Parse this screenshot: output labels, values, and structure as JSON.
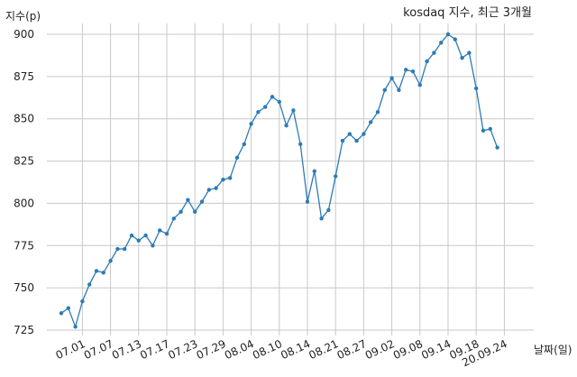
{
  "chart_data": {
    "type": "line",
    "title": "kosdaq 지수, 최근 3개월",
    "xlabel": "날짜(일)",
    "ylabel": "지수(p)",
    "ylim": [
      720,
      905
    ],
    "yticks": [
      725,
      750,
      775,
      800,
      825,
      850,
      875,
      900
    ],
    "xticks": [
      {
        "label": "07.01",
        "x": 3
      },
      {
        "label": "07.07",
        "x": 7
      },
      {
        "label": "07.13",
        "x": 11
      },
      {
        "label": "07.17",
        "x": 15
      },
      {
        "label": "07.23",
        "x": 19
      },
      {
        "label": "07.29",
        "x": 23
      },
      {
        "label": "08.04",
        "x": 27
      },
      {
        "label": "08.10",
        "x": 31
      },
      {
        "label": "08.14",
        "x": 35
      },
      {
        "label": "08.21",
        "x": 39
      },
      {
        "label": "08.27",
        "x": 43
      },
      {
        "label": "09.02",
        "x": 47
      },
      {
        "label": "09.08",
        "x": 51
      },
      {
        "label": "09.14",
        "x": 55
      },
      {
        "label": "09.18",
        "x": 59
      },
      {
        "label": "20.09.24",
        "x": 63
      }
    ],
    "grid": true,
    "series": [
      {
        "values": [
          735,
          738,
          727,
          742,
          752,
          760,
          759,
          766,
          773,
          773,
          781,
          778,
          781,
          775,
          784,
          782,
          791,
          795,
          802,
          795,
          801,
          808,
          809,
          814,
          815,
          827,
          835,
          847,
          854,
          857,
          863,
          860,
          846,
          855,
          835,
          801,
          819,
          791,
          796,
          816,
          837,
          841,
          837,
          841,
          848,
          854,
          867,
          874,
          867,
          879,
          878,
          870,
          884,
          889,
          895,
          900,
          897,
          886,
          889,
          868,
          843,
          844,
          833
        ],
        "color": "#2c7bb6"
      }
    ]
  }
}
